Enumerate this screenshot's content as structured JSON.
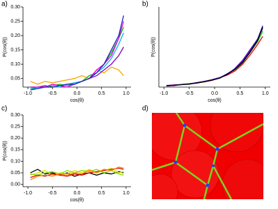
{
  "chart_data": [
    {
      "type": "line",
      "label": "a)",
      "xlabel": "cos(θ)",
      "ylabel": "P(cos(θ))",
      "x": [
        -0.95,
        -0.8,
        -0.65,
        -0.5,
        -0.35,
        -0.2,
        -0.05,
        0.1,
        0.25,
        0.4,
        0.55,
        0.7,
        0.85,
        0.95
      ],
      "xlim": [
        -1.1,
        1.1
      ],
      "ylim": [
        0.02,
        0.3
      ],
      "xticks": [
        {
          "value": -1,
          "label": "-1.0"
        },
        -0.5,
        {
          "value": 0,
          "label": "0.0"
        },
        0.5,
        {
          "value": 1,
          "label": "1.0"
        }
      ],
      "yticks": [
        0.05,
        {
          "value": 0.1,
          "label": "0.10"
        },
        0.15,
        {
          "value": 0.2,
          "label": "0.20"
        },
        0.25,
        {
          "value": 0.3,
          "label": "0.30"
        }
      ],
      "series": [
        {
          "color": "#ffa500",
          "values": [
            0.04,
            0.03,
            0.04,
            0.035,
            0.04,
            0.045,
            0.05,
            0.06,
            0.05,
            0.08,
            0.07,
            0.09,
            0.08,
            0.06
          ]
        },
        {
          "color": "#8000c0",
          "values": [
            0.02,
            0.02,
            0.025,
            0.02,
            0.025,
            0.03,
            0.03,
            0.04,
            0.05,
            0.06,
            0.08,
            0.1,
            0.13,
            0.16
          ]
        },
        {
          "color": "#00c000",
          "values": [
            0.015,
            0.02,
            0.02,
            0.025,
            0.03,
            0.025,
            0.03,
            0.04,
            0.06,
            0.07,
            0.1,
            0.14,
            0.19,
            0.23
          ]
        },
        {
          "color": "#00b0f0",
          "values": [
            0.015,
            0.015,
            0.02,
            0.02,
            0.02,
            0.03,
            0.035,
            0.04,
            0.05,
            0.07,
            0.09,
            0.12,
            0.17,
            0.21
          ]
        },
        {
          "color": "#e000e0",
          "values": [
            0.02,
            0.02,
            0.02,
            0.03,
            0.025,
            0.02,
            0.03,
            0.04,
            0.05,
            0.08,
            0.1,
            0.13,
            0.19,
            0.25
          ]
        },
        {
          "color": "#2020c0",
          "values": [
            0.01,
            0.015,
            0.02,
            0.02,
            0.025,
            0.03,
            0.03,
            0.04,
            0.05,
            0.07,
            0.1,
            0.15,
            0.2,
            0.27
          ]
        }
      ]
    },
    {
      "type": "line",
      "label": "b)",
      "xlabel": "cos(θ)",
      "ylabel": "P(cos(θ))",
      "x": [
        -0.95,
        -0.8,
        -0.65,
        -0.5,
        -0.35,
        -0.2,
        -0.05,
        0.1,
        0.25,
        0.4,
        0.55,
        0.7,
        0.85,
        0.95
      ],
      "xlim": [
        -1.1,
        1.1
      ],
      "ylim": [
        0,
        0.3
      ],
      "xticks": [
        {
          "value": -1,
          "label": "-1.0"
        },
        -0.5,
        {
          "value": 0,
          "label": "0.0"
        },
        0.5,
        {
          "value": 1,
          "label": "1.0"
        }
      ],
      "series": [
        {
          "color": "#e00000",
          "values": [
            0.005,
            0.008,
            0.01,
            0.012,
            0.015,
            0.02,
            0.025,
            0.035,
            0.045,
            0.06,
            0.085,
            0.12,
            0.16,
            0.19
          ]
        },
        {
          "color": "#00c000",
          "values": [
            0.005,
            0.007,
            0.01,
            0.013,
            0.016,
            0.02,
            0.026,
            0.034,
            0.05,
            0.065,
            0.09,
            0.13,
            0.17,
            0.21
          ]
        },
        {
          "color": "#8000c0",
          "values": [
            0.006,
            0.008,
            0.009,
            0.012,
            0.017,
            0.022,
            0.028,
            0.036,
            0.047,
            0.07,
            0.1,
            0.14,
            0.18,
            0.22
          ]
        },
        {
          "color": "#2020c0",
          "values": [
            0.004,
            0.006,
            0.01,
            0.012,
            0.015,
            0.021,
            0.027,
            0.035,
            0.05,
            0.068,
            0.095,
            0.135,
            0.18,
            0.23
          ]
        },
        {
          "color": "#000000",
          "values": [
            0.005,
            0.006,
            0.009,
            0.011,
            0.016,
            0.02,
            0.026,
            0.033,
            0.048,
            0.066,
            0.092,
            0.13,
            0.175,
            0.225
          ]
        }
      ]
    },
    {
      "type": "line",
      "label": "c)",
      "xlabel": "cos(θ)",
      "ylabel": "P(cos(θ))",
      "x": [
        -0.95,
        -0.8,
        -0.65,
        -0.5,
        -0.35,
        -0.2,
        -0.05,
        0.1,
        0.25,
        0.4,
        0.55,
        0.7,
        0.85,
        0.95
      ],
      "xlim": [
        -1.1,
        1.1
      ],
      "ylim": [
        -0.01,
        0.3
      ],
      "xticks": [
        {
          "value": -1,
          "label": "-1.0"
        },
        -0.5,
        {
          "value": 0,
          "label": "0.0"
        },
        0.5,
        {
          "value": 1,
          "label": "1.0"
        }
      ],
      "yticks": [
        {
          "value": 0,
          "label": "0.00"
        },
        0.05,
        {
          "value": 0.1,
          "label": "0.10"
        },
        0.15,
        {
          "value": 0.2,
          "label": "0.20"
        },
        0.25,
        {
          "value": 0.3,
          "label": "0.30"
        }
      ],
      "series": [
        {
          "color": "#000000",
          "values": [
            0.05,
            0.065,
            0.045,
            0.05,
            0.04,
            0.05,
            0.035,
            0.045,
            0.05,
            0.04,
            0.05,
            0.045,
            0.055,
            0.05
          ]
        },
        {
          "color": "#e0e000",
          "values": [
            0.04,
            0.05,
            0.06,
            0.04,
            0.05,
            0.045,
            0.06,
            0.05,
            0.065,
            0.05,
            0.06,
            0.07,
            0.05,
            0.055
          ]
        },
        {
          "color": "#80e000",
          "values": [
            0.045,
            0.04,
            0.05,
            0.055,
            0.045,
            0.06,
            0.05,
            0.06,
            0.055,
            0.065,
            0.05,
            0.06,
            0.045,
            0.04
          ]
        },
        {
          "color": "#e00000",
          "values": [
            0.03,
            0.04,
            0.035,
            0.045,
            0.04,
            0.035,
            0.045,
            0.04,
            0.05,
            0.055,
            0.06,
            0.065,
            0.07,
            0.065
          ]
        },
        {
          "color": "#ff8000",
          "values": [
            0.02,
            0.035,
            0.04,
            0.035,
            0.045,
            0.04,
            0.05,
            0.045,
            0.06,
            0.05,
            0.065,
            0.06,
            0.075,
            0.07
          ]
        }
      ]
    }
  ],
  "panel_d": {
    "label": "d)"
  }
}
